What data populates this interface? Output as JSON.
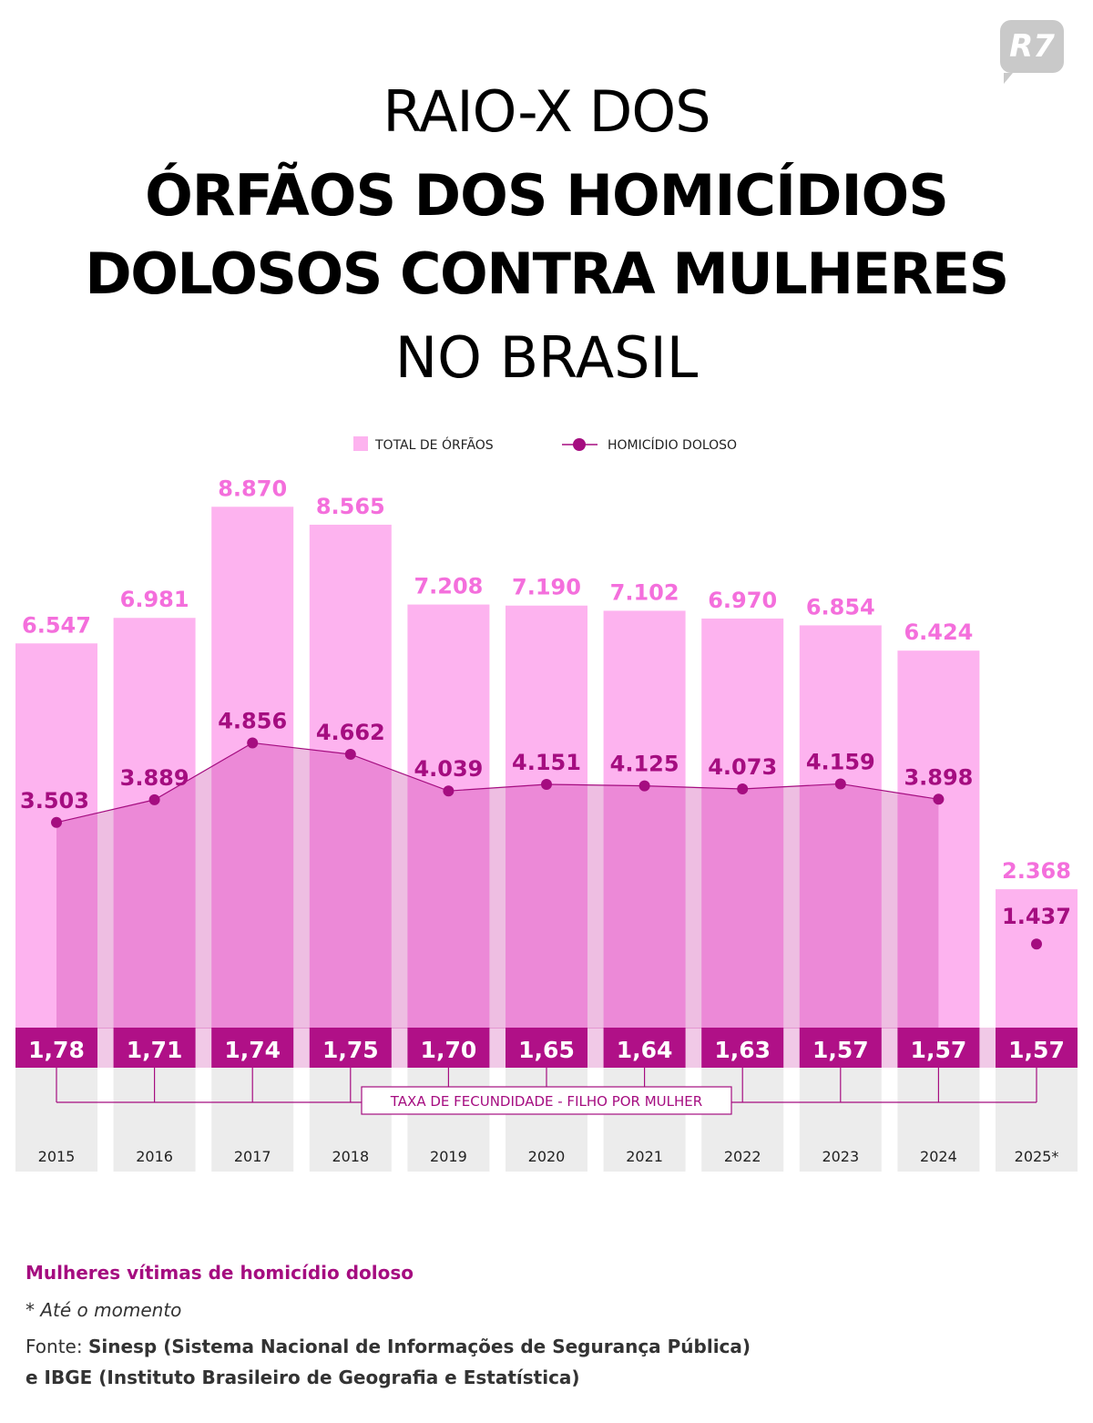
{
  "header": {
    "line1": "RAIO-X DOS",
    "line2": "ÓRFÃOS DOS HOMICÍDIOS",
    "line3": "DOLOSOS CONTRA MULHERES",
    "line4": "NO BRASIL",
    "logo": "R7"
  },
  "colors": {
    "bar": "#fdb3ef",
    "bar_label": "#f46fdc",
    "line": "#a50d80",
    "rate_band": "#a8087f",
    "gray": "#ececec"
  },
  "chart_data": {
    "type": "bar",
    "categories": [
      "2015",
      "2016",
      "2017",
      "2018",
      "2019",
      "2020",
      "2021",
      "2022",
      "2023",
      "2024",
      "2025*"
    ],
    "series": [
      {
        "name": "TOTAL DE ÓRFÃOS",
        "type": "bar",
        "values": [
          6547,
          6981,
          8870,
          8565,
          7208,
          7190,
          7102,
          6970,
          6854,
          6424,
          2368
        ],
        "labels": [
          "6.547",
          "6.981",
          "8.870",
          "8.565",
          "7.208",
          "7.190",
          "7.102",
          "6.970",
          "6.854",
          "6.424",
          "2.368"
        ]
      },
      {
        "name": "HOMICÍDIO DOLOSO",
        "type": "line",
        "values": [
          3503,
          3889,
          4856,
          4662,
          4039,
          4151,
          4125,
          4073,
          4159,
          3898,
          1437
        ],
        "labels": [
          "3.503",
          "3.889",
          "4.856",
          "4.662",
          "4.039",
          "4.151",
          "4.125",
          "4.073",
          "4.159",
          "3.898",
          "1.437"
        ]
      },
      {
        "name": "TAXA DE FECUNDIDADE - FILHO POR MULHER",
        "type": "table",
        "values": [
          1.78,
          1.71,
          1.74,
          1.75,
          1.7,
          1.65,
          1.64,
          1.63,
          1.57,
          1.57,
          1.57
        ],
        "labels": [
          "1,78",
          "1,71",
          "1,74",
          "1,75",
          "1,70",
          "1,65",
          "1,64",
          "1,63",
          "1,57",
          "1,57",
          "1,57"
        ]
      }
    ],
    "ylim": [
      0,
      9000
    ],
    "legend": {
      "placement": "top-center",
      "bar_label": "TOTAL DE ÓRFÃOS",
      "line_label": "HOMICÍDIO DOLOSO"
    },
    "rate_caption": "TAXA DE FECUNDIDADE - FILHO POR MULHER"
  },
  "footer": {
    "subtitle": "Mulheres vítimas de homicídio doloso",
    "note": "* Até o momento",
    "source_prefix": "Fonte:",
    "source_line1": "Sinesp (Sistema Nacional de Informações de Segurança Pública)",
    "source_line2": "e IBGE (Instituto Brasileiro de Geografia e Estatística)"
  }
}
